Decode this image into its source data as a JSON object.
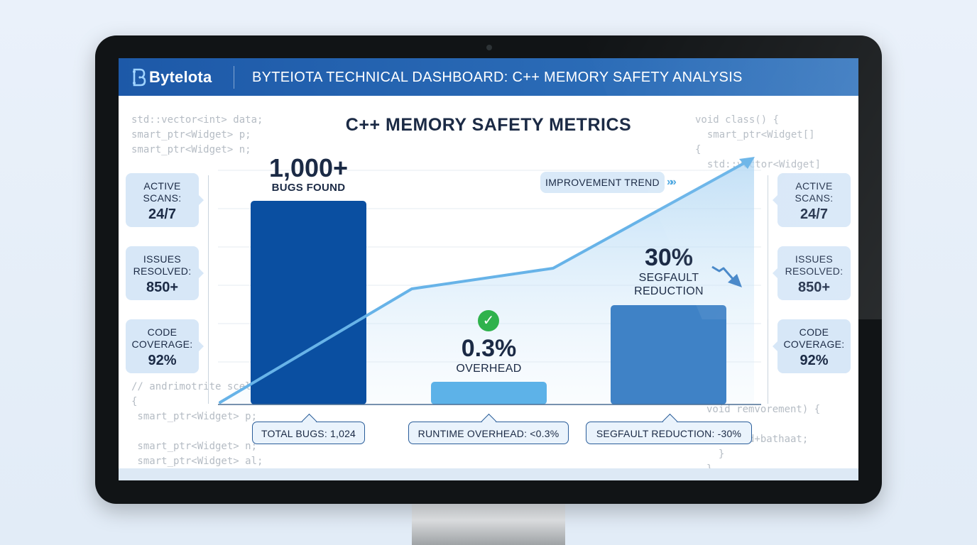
{
  "header": {
    "logo_text": "Bytelota",
    "title": "BYTEIOTA TECHNICAL DASHBOARD: C++ MEMORY SAFETY ANALYSIS"
  },
  "main_title": "C++ MEMORY SAFETY METRICS",
  "code_snippets": {
    "top_left": [
      "std::vector<int> data;",
      "smart_ptr<Widget> p;",
      "smart_ptr<Widget> n;"
    ],
    "top_right": [
      "void class() {",
      "  smart_ptr<Widget[]",
      "{",
      "  std::vector<Widget]"
    ],
    "bottom_left": [
      "// andrimotrite scel",
      "{",
      " smart_ptr<Widget> p;",
      "",
      " smart_ptr<Widget> n;",
      " smart_ptr<Widget> al;"
    ],
    "bottom_right": [
      "void remvorement) {",
      "",
      "  dnoitd+bathaat;",
      "  }",
      "}"
    ]
  },
  "left_cards": [
    {
      "label": "ACTIVE\nSCANS:",
      "value": "24/7"
    },
    {
      "label": "ISSUES\nRESOLVED:",
      "value": "850+"
    },
    {
      "label": "CODE\nCOVERAGE:",
      "value": "92%"
    }
  ],
  "right_cards": [
    {
      "label": "ACTIVE\nSCANS:",
      "value": "24/7"
    },
    {
      "label": "ISSUES\nRESOLVED:",
      "value": "850+"
    },
    {
      "label": "CODE\nCOVERAGE:",
      "value": "92%"
    }
  ],
  "bars": {
    "bugs": {
      "value": "1,000+",
      "label": "BUGS FOUND"
    },
    "overhead": {
      "value": "0.3%",
      "label": "OVERHEAD"
    },
    "segfault": {
      "value": "30%",
      "label_line1": "SEGFAULT",
      "label_line2": "REDUCTION"
    }
  },
  "trend_label": "IMPROVEMENT TREND",
  "bottom_pills": [
    "TOTAL BUGS: 1,024",
    "RUNTIME OVERHEAD: <0.3%",
    "SEGFAULT REDUCTION: -30%"
  ],
  "chart_data": {
    "type": "bar",
    "categories": [
      "BUGS FOUND",
      "OVERHEAD",
      "SEGFAULT REDUCTION"
    ],
    "bar_heights_relative": [
      1.0,
      0.11,
      0.49
    ],
    "trend_line": {
      "name": "IMPROVEMENT TREND",
      "relative_points": [
        [
          0.0,
          0.0
        ],
        [
          0.36,
          0.57
        ],
        [
          0.62,
          0.66
        ],
        [
          1.0,
          1.16
        ]
      ]
    },
    "colors": {
      "bugs": "#0a4fa1",
      "overhead": "#5db2e8",
      "segfault": "#3f82c6",
      "trend": "#67b3e8"
    }
  },
  "colors": {
    "header": "#1d59a8",
    "card_bg": "#d7e7f7",
    "text_dark": "#1b2a45",
    "success": "#2fb24c"
  }
}
